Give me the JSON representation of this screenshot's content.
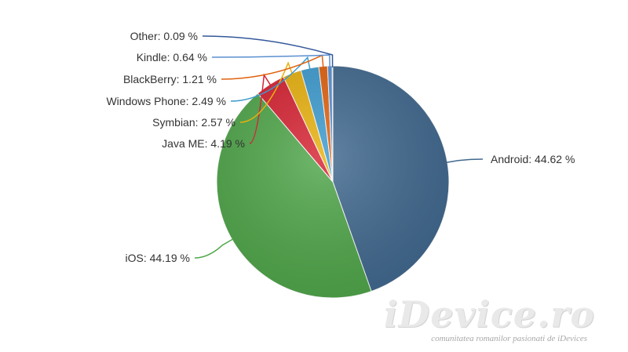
{
  "chart_data": {
    "type": "pie",
    "slices": [
      {
        "name": "Android",
        "value": 44.62,
        "label": "Android: 44.62 %",
        "color": "#41698f"
      },
      {
        "name": "iOS",
        "value": 44.19,
        "label": "iOS: 44.19 %",
        "color": "#4fa64a"
      },
      {
        "name": "Java ME",
        "value": 4.19,
        "label": "Java ME: 4.19 %",
        "color": "#d62232"
      },
      {
        "name": "Symbian",
        "value": 2.57,
        "label": "Symbian: 2.57 %",
        "color": "#e8b10e"
      },
      {
        "name": "Windows Phone",
        "value": 2.49,
        "label": "Windows Phone: 2.49 %",
        "color": "#3d9bcf"
      },
      {
        "name": "BlackBerry",
        "value": 1.21,
        "label": "BlackBerry: 1.21 %",
        "color": "#e0620f"
      },
      {
        "name": "Kindle",
        "value": 0.64,
        "label": "Kindle: 0.64 %",
        "color": "#5a8fd0"
      },
      {
        "name": "Other",
        "value": 0.09,
        "label": "Other: 0.09 %",
        "color": "#34589a"
      }
    ]
  },
  "watermark": {
    "title": "iDevice.ro",
    "subtitle": "comunitatea romanilor pasionati de iDevices"
  }
}
